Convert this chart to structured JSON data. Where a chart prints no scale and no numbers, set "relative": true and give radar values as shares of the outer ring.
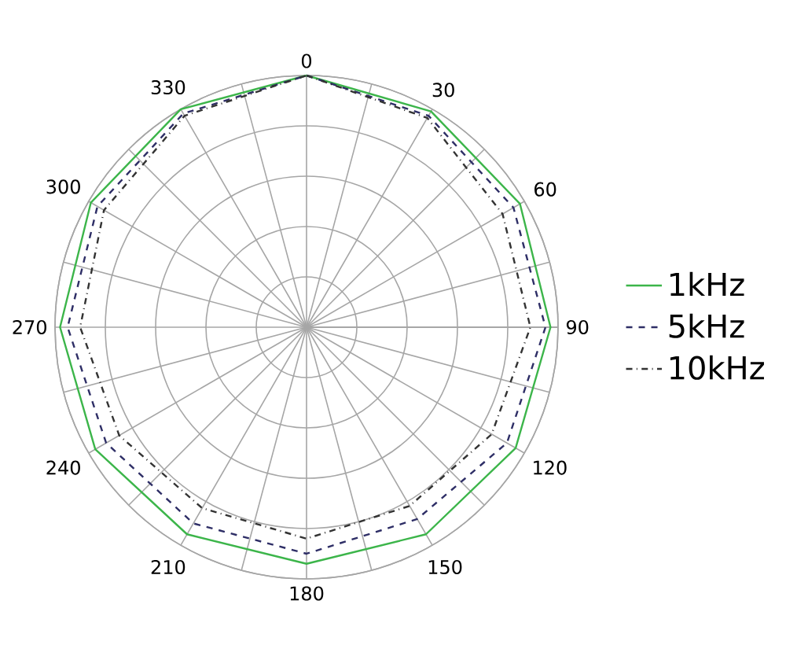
{
  "chart_data": {
    "type": "radar",
    "relative": true,
    "grid": true,
    "legend": "right",
    "categories": [
      "0",
      "30",
      "60",
      "90",
      "120",
      "150",
      "180",
      "210",
      "240",
      "270",
      "300",
      "330"
    ],
    "series": [
      {
        "name": "1kHz",
        "color": "#3cb54a",
        "line_style": "solid",
        "values": [
          1.0,
          0.99,
          0.98,
          0.97,
          0.96,
          0.95,
          0.94,
          0.95,
          0.97,
          0.98,
          0.99,
          1.0
        ]
      },
      {
        "name": "5kHz",
        "color": "#2e2e66",
        "line_style": "dashed",
        "values": [
          1.0,
          0.97,
          0.95,
          0.95,
          0.92,
          0.88,
          0.9,
          0.9,
          0.92,
          0.95,
          0.96,
          0.98
        ]
      },
      {
        "name": "10kHz",
        "color": "#333333",
        "line_style": "dashdot",
        "values": [
          1.0,
          0.96,
          0.9,
          0.89,
          0.85,
          0.82,
          0.84,
          0.83,
          0.86,
          0.9,
          0.93,
          0.97
        ]
      }
    ]
  }
}
